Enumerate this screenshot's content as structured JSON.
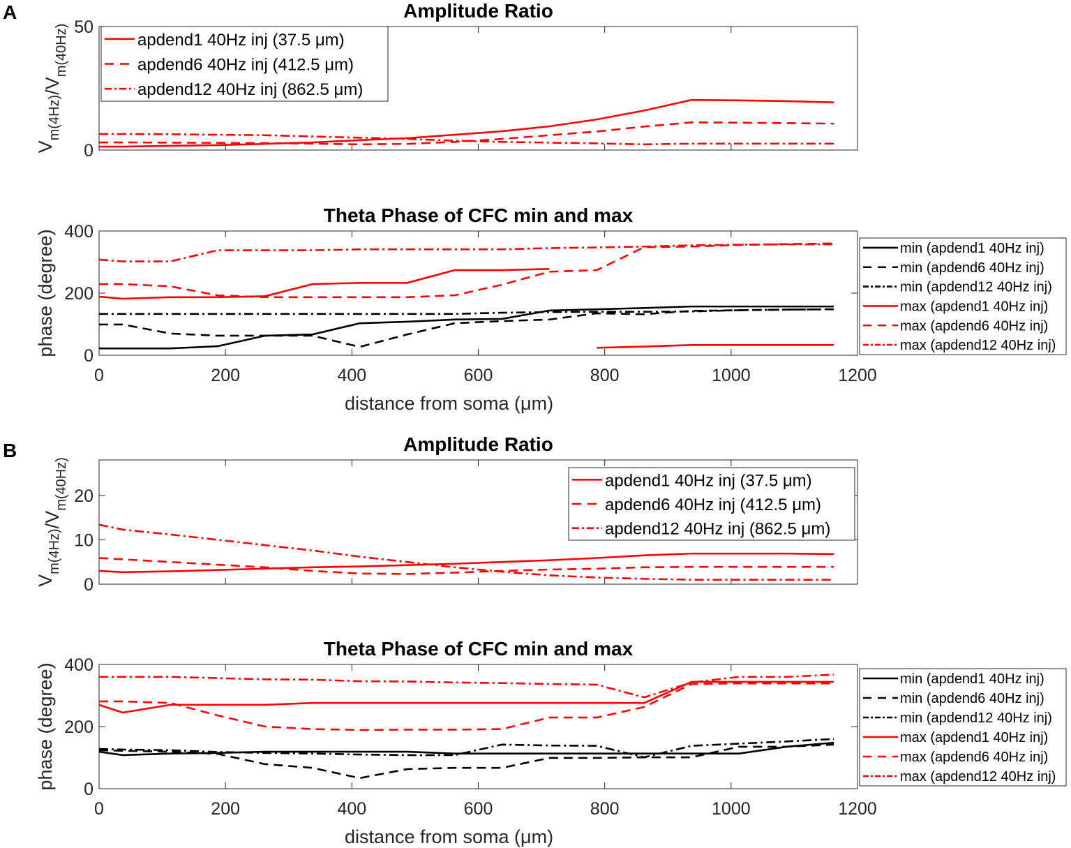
{
  "panel_labels": [
    "A",
    "B"
  ],
  "colors": {
    "min": "#000000",
    "max": "#ff0000",
    "amp": "#ff0000"
  },
  "chart_data": [
    {
      "panel": "A",
      "type": "line",
      "title": "Amplitude Ratio",
      "ylabel": "V_m(4Hz)/V_m(40Hz)",
      "xlabel": "",
      "xlim": [
        0,
        1200
      ],
      "ylim": [
        0,
        50
      ],
      "yticks": [
        0,
        50
      ],
      "xticks": [
        0,
        200,
        400,
        600,
        800,
        1000,
        1200
      ],
      "show_xtick_labels": false,
      "legend_placement": "top-left",
      "x": [
        0,
        37.5,
        112.5,
        187.5,
        262.5,
        337.5,
        412.5,
        487.5,
        562.5,
        637.5,
        712.5,
        787.5,
        862.5,
        937.5,
        1012.5,
        1087.5,
        1162.5
      ],
      "series": [
        {
          "name": "apdend1 40Hz inj (37.5 μm)",
          "style": "solid",
          "color": "#ff0000",
          "values": [
            1.4,
            1.4,
            1.7,
            2.0,
            2.5,
            3.1,
            4.0,
            4.8,
            6.2,
            7.6,
            9.6,
            12.4,
            16.0,
            20.3,
            20.1,
            19.8,
            19.3
          ]
        },
        {
          "name": "apdend6 40Hz inj (412.5 μm)",
          "style": "dashed",
          "color": "#ff0000",
          "values": [
            3.1,
            3.1,
            3.0,
            2.9,
            2.8,
            2.6,
            2.3,
            2.5,
            3.3,
            4.5,
            6.0,
            7.5,
            9.5,
            11.2,
            11.1,
            10.9,
            10.7
          ]
        },
        {
          "name": "apdend12 40Hz inj (862.5 μm)",
          "style": "dashdot",
          "color": "#ff0000",
          "values": [
            6.5,
            6.5,
            6.4,
            6.2,
            6.0,
            5.5,
            5.0,
            4.5,
            3.8,
            3.3,
            3.0,
            2.7,
            2.3,
            2.6,
            2.6,
            2.6,
            2.6
          ]
        }
      ]
    },
    {
      "panel": "A",
      "type": "line",
      "title": "Theta Phase of CFC min and max",
      "ylabel": "phase (degree)",
      "xlabel": "distance from soma (μm)",
      "xlim": [
        0,
        1200
      ],
      "ylim": [
        0,
        400
      ],
      "yticks": [
        0,
        200,
        400
      ],
      "xticks": [
        0,
        200,
        400,
        600,
        800,
        1000,
        1200
      ],
      "show_xtick_labels": true,
      "legend_placement": "outside-right",
      "x": [
        0,
        37.5,
        112.5,
        187.5,
        262.5,
        337.5,
        412.5,
        487.5,
        562.5,
        637.5,
        712.5,
        787.5,
        862.5,
        937.5,
        1012.5,
        1087.5,
        1162.5
      ],
      "series": [
        {
          "name": "min (apdend1 40Hz inj)",
          "style": "solid",
          "color": "#000000",
          "values": [
            22,
            22,
            22,
            29,
            63,
            67,
            103,
            108,
            115,
            117,
            144,
            148,
            152,
            157,
            157,
            157,
            157
          ]
        },
        {
          "name": "min (apdend6 40Hz inj)",
          "style": "dashed",
          "color": "#000000",
          "values": [
            99,
            99,
            70,
            63,
            63,
            63,
            27,
            67,
            103,
            110,
            115,
            135,
            132,
            143,
            145,
            147,
            148
          ]
        },
        {
          "name": "min (apdend12 40Hz inj)",
          "style": "dashdot",
          "color": "#000000",
          "values": [
            133,
            133,
            133,
            133,
            133,
            133,
            133,
            133,
            133,
            137,
            139,
            140,
            140,
            141,
            145,
            147,
            148
          ]
        },
        {
          "name": "max (apdend1 40Hz inj)",
          "style": "solid",
          "color": "#ff0000",
          "values": [
            189,
            182,
            187,
            187,
            190,
            229,
            233,
            233,
            274,
            274,
            278,
            24,
            28,
            33,
            33,
            33,
            33
          ]
        },
        {
          "name": "max (apdend6 40Hz inj)",
          "style": "dashed",
          "color": "#ff0000",
          "values": [
            229,
            229,
            222,
            193,
            187,
            187,
            187,
            187,
            193,
            227,
            269,
            274,
            348,
            350,
            355,
            358,
            360
          ]
        },
        {
          "name": "max (apdend12 40Hz inj)",
          "style": "dashdot",
          "color": "#ff0000",
          "values": [
            308,
            302,
            302,
            338,
            338,
            338,
            341,
            341,
            341,
            341,
            345,
            347,
            350,
            354,
            356,
            357,
            357
          ]
        }
      ]
    },
    {
      "panel": "B",
      "type": "line",
      "title": "Amplitude Ratio",
      "ylabel": "V_m(4Hz)/V_m(40Hz)",
      "xlabel": "",
      "xlim": [
        0,
        1200
      ],
      "ylim": [
        0,
        28
      ],
      "yticks": [
        0,
        10,
        20
      ],
      "xticks": [
        0,
        200,
        400,
        600,
        800,
        1000,
        1200
      ],
      "show_xtick_labels": false,
      "legend_placement": "top-right",
      "x": [
        0,
        37.5,
        112.5,
        187.5,
        262.5,
        337.5,
        412.5,
        487.5,
        562.5,
        637.5,
        712.5,
        787.5,
        862.5,
        937.5,
        1012.5,
        1087.5,
        1162.5
      ],
      "series": [
        {
          "name": "apdend1 40Hz inj (37.5 μm)",
          "style": "solid",
          "color": "#ff0000",
          "values": [
            3.0,
            2.7,
            2.9,
            3.2,
            3.5,
            3.8,
            4.0,
            4.3,
            4.6,
            5.0,
            5.4,
            5.9,
            6.5,
            6.9,
            6.9,
            6.9,
            6.8
          ]
        },
        {
          "name": "apdend6 40Hz inj (412.5 μm)",
          "style": "dashed",
          "color": "#ff0000",
          "values": [
            5.9,
            5.6,
            5.0,
            4.4,
            3.8,
            3.0,
            2.4,
            2.3,
            2.6,
            3.0,
            3.3,
            3.5,
            3.8,
            3.9,
            3.9,
            3.9,
            3.9
          ]
        },
        {
          "name": "apdend12 40Hz inj (862.5 μm)",
          "style": "dashdot",
          "color": "#ff0000",
          "values": [
            13.4,
            12.3,
            11.2,
            10.0,
            8.8,
            7.6,
            6.2,
            5.0,
            3.8,
            2.8,
            2.0,
            1.5,
            1.2,
            1.0,
            1.0,
            1.0,
            1.0
          ]
        }
      ]
    },
    {
      "panel": "B",
      "type": "line",
      "title": "Theta Phase of CFC min and max",
      "ylabel": "phase (degree)",
      "xlabel": "distance from soma (μm)",
      "xlim": [
        0,
        1200
      ],
      "ylim": [
        0,
        400
      ],
      "yticks": [
        0,
        200,
        400
      ],
      "xticks": [
        0,
        200,
        400,
        600,
        800,
        1000,
        1200
      ],
      "show_xtick_labels": true,
      "legend_placement": "outside-right",
      "x": [
        0,
        37.5,
        112.5,
        187.5,
        262.5,
        337.5,
        412.5,
        487.5,
        562.5,
        637.5,
        712.5,
        787.5,
        862.5,
        937.5,
        1012.5,
        1087.5,
        1162.5
      ],
      "series": [
        {
          "name": "min (apdend1 40Hz inj)",
          "style": "solid",
          "color": "#000000",
          "values": [
            119,
            108,
            113,
            115,
            119,
            119,
            119,
            119,
            113,
            113,
            113,
            113,
            113,
            113,
            113,
            135,
            148
          ]
        },
        {
          "name": "min (apdend6 40Hz inj)",
          "style": "dashed",
          "color": "#000000",
          "values": [
            124,
            122,
            119,
            112,
            79,
            67,
            34,
            63,
            67,
            67,
            99,
            99,
            101,
            101,
            135,
            135,
            142
          ]
        },
        {
          "name": "min (apdend12 40Hz inj)",
          "style": "dashdot",
          "color": "#000000",
          "values": [
            128,
            126,
            124,
            118,
            115,
            113,
            110,
            108,
            108,
            142,
            139,
            138,
            101,
            138,
            145,
            152,
            160
          ]
        },
        {
          "name": "max (apdend1 40Hz inj)",
          "style": "solid",
          "color": "#ff0000",
          "values": [
            270,
            245,
            270,
            270,
            270,
            276,
            276,
            276,
            276,
            276,
            276,
            276,
            276,
            344,
            344,
            344,
            344
          ]
        },
        {
          "name": "max (apdend6 40Hz inj)",
          "style": "dashed",
          "color": "#ff0000",
          "values": [
            281,
            281,
            276,
            236,
            200,
            192,
            189,
            190,
            190,
            192,
            229,
            229,
            263,
            337,
            339,
            339,
            339
          ]
        },
        {
          "name": "max (apdend12 40Hz inj)",
          "style": "dashdot",
          "color": "#ff0000",
          "values": [
            360,
            360,
            360,
            356,
            352,
            351,
            346,
            345,
            342,
            340,
            337,
            335,
            294,
            342,
            360,
            360,
            367
          ]
        }
      ]
    }
  ]
}
